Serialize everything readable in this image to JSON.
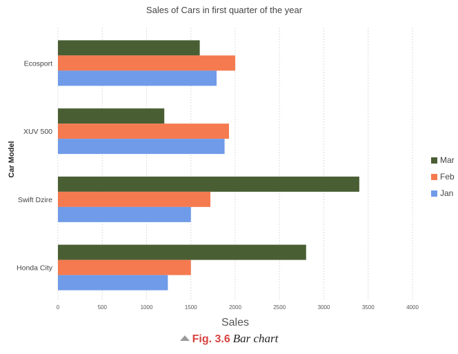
{
  "chart_data": {
    "type": "bar",
    "orientation": "horizontal",
    "title": "Sales of Cars in first quarter of the year",
    "xlabel": "Sales",
    "ylabel": "Car Model",
    "categories": [
      "Ecosport",
      "XUV 500",
      "Swift Dzire",
      "Honda City"
    ],
    "series": [
      {
        "name": "Mar",
        "color": "#4a5e34",
        "values": [
          1600,
          1200,
          3400,
          2800
        ]
      },
      {
        "name": "Feb",
        "color": "#f57a4f",
        "values": [
          2000,
          1930,
          1720,
          1500
        ]
      },
      {
        "name": "Jan",
        "color": "#6f9be8",
        "values": [
          1790,
          1880,
          1500,
          1240
        ]
      }
    ],
    "xlim": [
      0,
      4000
    ],
    "xticks": [
      0,
      500,
      1000,
      1500,
      2000,
      2500,
      3000,
      3500,
      4000
    ],
    "grid": "vertical",
    "legend_position": "right"
  },
  "caption": {
    "icon": "triangle-up-icon",
    "figure_number": "Fig. 3.6",
    "description": "Bar chart"
  }
}
